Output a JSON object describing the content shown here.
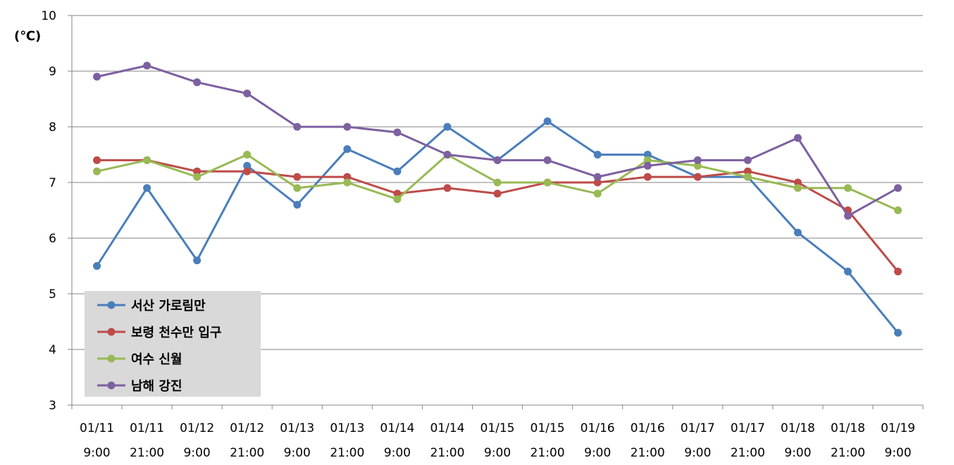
{
  "chart_data": {
    "type": "line",
    "ylabel": "(℃)",
    "ylim": [
      3,
      10
    ],
    "yticks": [
      3,
      4,
      5,
      6,
      7,
      8,
      9,
      10
    ],
    "grid": true,
    "legend_position": "bottom-left",
    "categories": [
      [
        "01/11",
        "9:00"
      ],
      [
        "01/11",
        "21:00"
      ],
      [
        "01/12",
        "9:00"
      ],
      [
        "01/12",
        "21:00"
      ],
      [
        "01/13",
        "9:00"
      ],
      [
        "01/13",
        "21:00"
      ],
      [
        "01/14",
        "9:00"
      ],
      [
        "01/14",
        "21:00"
      ],
      [
        "01/15",
        "9:00"
      ],
      [
        "01/15",
        "21:00"
      ],
      [
        "01/16",
        "9:00"
      ],
      [
        "01/16",
        "21:00"
      ],
      [
        "01/17",
        "9:00"
      ],
      [
        "01/17",
        "21:00"
      ],
      [
        "01/18",
        "9:00"
      ],
      [
        "01/18",
        "21:00"
      ],
      [
        "01/19",
        "9:00"
      ]
    ],
    "series": [
      {
        "name": "서산 가로림만",
        "color": "#4a7ebb",
        "values": [
          5.5,
          6.9,
          5.6,
          7.3,
          6.6,
          7.6,
          7.2,
          8.0,
          7.4,
          8.1,
          7.5,
          7.5,
          7.1,
          7.1,
          6.1,
          5.4,
          4.3
        ]
      },
      {
        "name": "보령 천수만 입구",
        "color": "#be4b48",
        "values": [
          7.4,
          7.4,
          7.2,
          7.2,
          7.1,
          7.1,
          6.8,
          6.9,
          6.8,
          7.0,
          7.0,
          7.1,
          7.1,
          7.2,
          7.0,
          6.5,
          5.4
        ]
      },
      {
        "name": "여수 신월",
        "color": "#98b954",
        "values": [
          7.2,
          7.4,
          7.1,
          7.5,
          6.9,
          7.0,
          6.7,
          7.5,
          7.0,
          7.0,
          6.8,
          7.4,
          7.3,
          7.1,
          6.9,
          6.9,
          6.5
        ]
      },
      {
        "name": "남해 강진",
        "color": "#7d60a0",
        "values": [
          8.9,
          9.1,
          8.8,
          8.6,
          8.0,
          8.0,
          7.9,
          7.5,
          7.4,
          7.4,
          7.1,
          7.3,
          7.4,
          7.4,
          7.8,
          6.4,
          6.9
        ]
      }
    ]
  }
}
